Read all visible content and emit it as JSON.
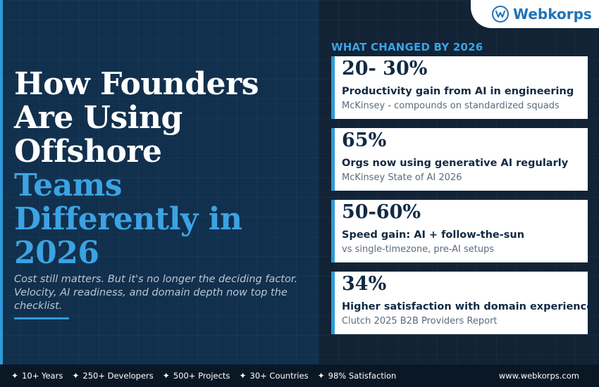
{
  "brand": {
    "name": "Webkorps",
    "url": "www.webkorps.com",
    "logo_icon": "w-circle-logo-icon",
    "accent_color": "#2f9ad8",
    "navy_color": "#112a44"
  },
  "headline": {
    "white_lines": [
      "How Founders",
      "Are Using",
      "Offshore"
    ],
    "blue_lines": [
      "Teams",
      "Differently in",
      "2026"
    ]
  },
  "subtext": "Cost still matters. But it's no longer the deciding factor. Velocity, AI readiness, and domain depth now top the checklist.",
  "stats": {
    "heading": "WHAT CHANGED BY 2026",
    "cards": [
      {
        "value": "20- 30%",
        "label": "Productivity gain from AI in engineering",
        "source": "McKinsey - compounds on standardized squads"
      },
      {
        "value": "65%",
        "label": "Orgs now using generative AI regularly",
        "source": "McKinsey State of AI 2026"
      },
      {
        "value": "50-60%",
        "label": "Speed gain: AI + follow-the-sun",
        "source": "vs single-timezone, pre-AI setups"
      },
      {
        "value": "34%",
        "label": "Higher satisfaction with domain experience",
        "source": "Clutch 2025 B2B Providers Report"
      }
    ]
  },
  "footer": {
    "items": [
      "10+ Years",
      "250+ Developers",
      "500+ Projects",
      "30+ Countries",
      "98% Satisfaction"
    ],
    "icon": "sparkle-star-icon"
  }
}
